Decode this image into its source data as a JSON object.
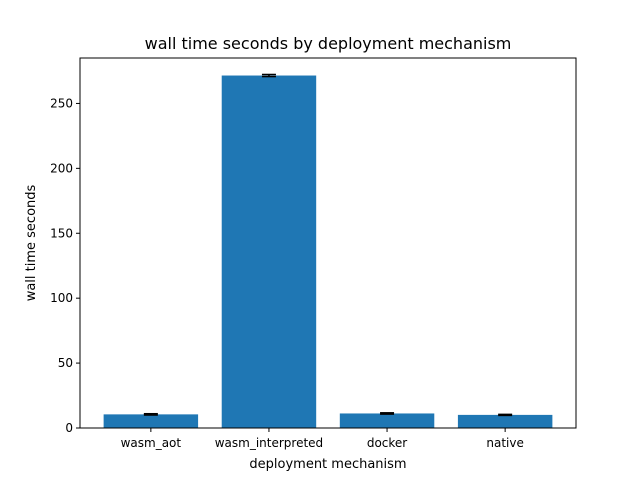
{
  "chart_data": {
    "type": "bar",
    "title": "wall time seconds by deployment mechanism",
    "xlabel": "deployment mechanism",
    "ylabel": "wall time seconds",
    "categories": [
      "wasm_aot",
      "wasm_interpreted",
      "docker",
      "native"
    ],
    "values": [
      10.5,
      271.5,
      11.2,
      10.1
    ],
    "error": [
      0.5,
      0.8,
      0.5,
      0.4
    ],
    "ylim": [
      0,
      285
    ],
    "yticks": [
      0,
      50,
      100,
      150,
      200,
      250
    ],
    "grid": false,
    "legend": null,
    "bar_color": "#1f77b4",
    "error_color": "#000000"
  }
}
